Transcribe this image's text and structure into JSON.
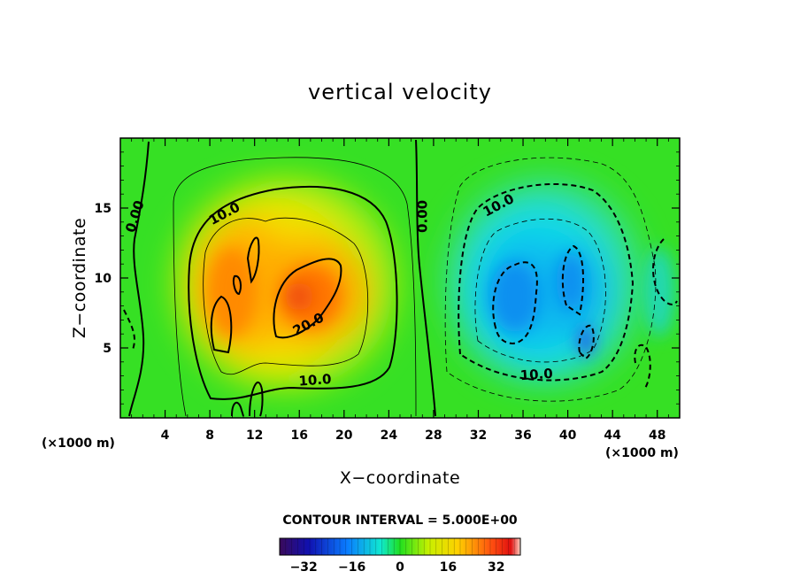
{
  "chart_data": {
    "type": "heatmap",
    "title": "vertical velocity",
    "xlabel": "X−coordinate",
    "ylabel": "Z−coordinate",
    "x_unit_left": "(×1000 m)",
    "x_unit_right": "(×1000 m)",
    "xlim": [
      0,
      50
    ],
    "ylim": [
      0,
      20
    ],
    "x_ticks": [
      4,
      8,
      12,
      16,
      20,
      24,
      28,
      32,
      36,
      40,
      44,
      48
    ],
    "x_tick_labels": [
      "4",
      "8",
      "12",
      "16",
      "20",
      "24",
      "28",
      "32",
      "36",
      "40",
      "44",
      "48"
    ],
    "y_ticks": [
      5,
      10,
      15
    ],
    "y_tick_labels": [
      "5",
      "10",
      "15"
    ],
    "contour_interval_text": "CONTOUR INTERVAL = 5.000E+00",
    "colorbar": {
      "vmin": -40,
      "vmax": 40,
      "ticks": [
        -32,
        -16,
        0,
        16,
        32
      ],
      "tick_labels": [
        "−32",
        "−16",
        "0",
        "16",
        "32"
      ]
    },
    "contour_labels": [
      {
        "text": "0.00",
        "x": 1.3,
        "z": 14.4,
        "angle": -72
      },
      {
        "text": "10.0",
        "x": 9.3,
        "z": 14.6,
        "angle": -28
      },
      {
        "text": "20.0",
        "x": 16.8,
        "z": 6.7,
        "angle": -28
      },
      {
        "text": "10.0",
        "x": 17.4,
        "z": 2.7,
        "angle": -4
      },
      {
        "text": "0.00",
        "x": 27.0,
        "z": 14.4,
        "angle": -90
      },
      {
        "text": "10.0",
        "x": 33.8,
        "z": 15.2,
        "angle": -28
      },
      {
        "text": "10.0",
        "x": 37.2,
        "z": 3.1,
        "angle": -4
      }
    ]
  }
}
